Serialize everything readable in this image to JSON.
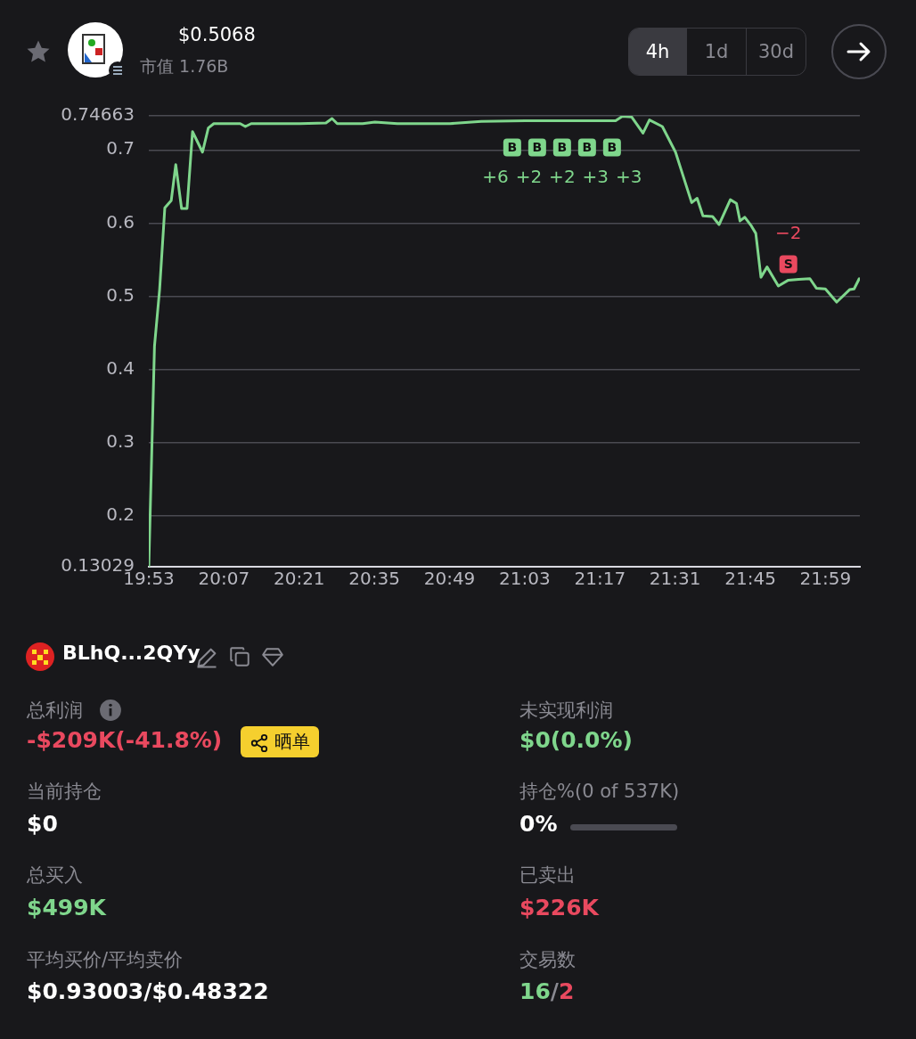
{
  "chart_data": [
    {
      "type": "line",
      "title": "$0.5068",
      "subtitle": "市值  1.76B",
      "x": [
        19.88333,
        19.901,
        19.917,
        19.933,
        19.953,
        19.967,
        19.985,
        20.002,
        20.019,
        20.05,
        20.068,
        20.085,
        20.118,
        20.167,
        20.183,
        20.201,
        20.29,
        20.352,
        20.433,
        20.452,
        20.468,
        20.547,
        20.585,
        20.655,
        20.818,
        20.915,
        21.052,
        21.283,
        21.332,
        21.353,
        21.382,
        21.417,
        21.437,
        21.477,
        21.518,
        21.568,
        21.585,
        21.603,
        21.633,
        21.653,
        21.688,
        21.707,
        21.718,
        21.733,
        21.752,
        21.767,
        21.783,
        21.802,
        21.837,
        21.868,
        21.9,
        21.935,
        21.955,
        21.983,
        22.018,
        22.058,
        22.072,
        22.088
      ],
      "series": [
        {
          "color": "#7fd68c",
          "values": [
            0.13029,
            0.432,
            0.51,
            0.621,
            0.631,
            0.68,
            0.62,
            0.62,
            0.725,
            0.697,
            0.73,
            0.736,
            0.736,
            0.736,
            0.732,
            0.736,
            0.736,
            0.736,
            0.737,
            0.743,
            0.736,
            0.736,
            0.738,
            0.736,
            0.736,
            0.739,
            0.74,
            0.74,
            0.74,
            0.746,
            0.745,
            0.723,
            0.741,
            0.732,
            0.697,
            0.628,
            0.634,
            0.61,
            0.609,
            0.598,
            0.632,
            0.627,
            0.603,
            0.608,
            0.597,
            0.586,
            0.526,
            0.54,
            0.514,
            0.522,
            0.523,
            0.524,
            0.511,
            0.51,
            0.492,
            0.509,
            0.51,
            0.524
          ]
        }
      ],
      "xlim": [
        19.88333,
        22.09
      ],
      "xticks": [
        {
          "value": 19.88333,
          "label": "19:53"
        },
        {
          "value": 20.11667,
          "label": "20:07"
        },
        {
          "value": 20.35,
          "label": "20:21"
        },
        {
          "value": 20.58333,
          "label": "20:35"
        },
        {
          "value": 20.81667,
          "label": "20:49"
        },
        {
          "value": 21.05,
          "label": "21:03"
        },
        {
          "value": 21.28333,
          "label": "21:17"
        },
        {
          "value": 21.51667,
          "label": "21:31"
        },
        {
          "value": 21.75,
          "label": "21:45"
        },
        {
          "value": 21.98333,
          "label": "21:59"
        }
      ],
      "ylim": [
        0.13029,
        0.74663
      ],
      "yticks": [
        0.13029,
        0.2,
        0.3,
        0.4,
        0.5,
        0.6,
        0.7,
        0.74663
      ],
      "grid": "y",
      "legend": false,
      "marker": "none",
      "line_style": "solid",
      "annotations": [
        "4h",
        "1d",
        "30d",
        {
          "text": "B",
          "x": 21.05,
          "y": 0.74
        },
        {
          "text": "B",
          "x": 21.083,
          "y": 0.74
        },
        {
          "text": "B",
          "x": 21.137,
          "y": 0.74
        },
        {
          "text": "+6",
          "x": 21.05,
          "y": 0.74
        },
        {
          "text": "+2",
          "x": 21.083,
          "y": 0.74
        },
        {
          "text": "+2",
          "x": 21.137,
          "y": 0.74
        },
        {
          "text": "B",
          "x": 21.277,
          "y": 0.74
        },
        {
          "text": "B",
          "x": 21.283,
          "y": 0.74
        },
        {
          "text": "+3",
          "x": 21.277,
          "y": 0.74
        },
        {
          "text": "+3",
          "x": 21.283,
          "y": 0.74
        },
        {
          "text": "S",
          "x": 21.868,
          "y": 0.522
        },
        {
          "text": "−2",
          "x": 21.868,
          "y": 0.522
        }
      ]
    },
    {
      "type": "other",
      "annotations": [
        "BLhQ...2QYy",
        "总利润",
        "-$209K(-41.8%)",
        "晒单",
        "未实现利润",
        "$0(0.0%)",
        "当前持仓",
        "$0",
        "持仓%(0 of 537K)",
        "0%",
        "总买入",
        "$499K",
        "已卖出",
        "$226K",
        "平均买价/平均卖价",
        "$0.93003/$0.48322",
        "交易数",
        "16/2"
      ]
    }
  ]
}
